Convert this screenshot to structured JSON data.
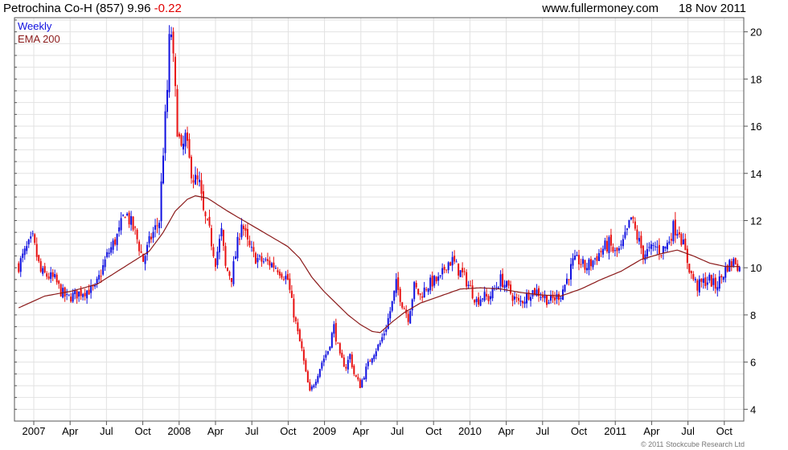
{
  "header": {
    "security": "Petrochina Co-H (857)",
    "price": "9.96",
    "change": "-0.22",
    "site": "www.fullermoney.com",
    "date": "18 Nov 2011"
  },
  "copyright": "© 2011 Stockcube Research Ltd",
  "colors": {
    "up": "#1010e0",
    "down": "#e81010",
    "ema": "#8b1a1a",
    "grid": "#e2e2e2",
    "frame": "#555555"
  },
  "chart_data": {
    "type": "candlestick",
    "legend": [
      "Weekly",
      "EMA 200"
    ],
    "legend_position": "top-left",
    "x_ticks": [
      "2007",
      "Apr",
      "Jul",
      "Oct",
      "2008",
      "Apr",
      "Jul",
      "Oct",
      "2009",
      "Apr",
      "Jul",
      "Oct",
      "2010",
      "Apr",
      "Jul",
      "Oct",
      "2011",
      "Apr",
      "Jul",
      "Oct"
    ],
    "y_ticks": [
      4,
      6,
      8,
      10,
      12,
      14,
      16,
      18,
      20
    ],
    "ylim": [
      3.5,
      20.6
    ],
    "grid": true,
    "price_path": [
      [
        0,
        10.1
      ],
      [
        4,
        10.8
      ],
      [
        7,
        11.2
      ],
      [
        11,
        9.8
      ],
      [
        18,
        9.5
      ],
      [
        21,
        9.0
      ],
      [
        24,
        8.7
      ],
      [
        32,
        9.0
      ],
      [
        38,
        9.1
      ],
      [
        44,
        10.5
      ],
      [
        50,
        11.5
      ],
      [
        53,
        12.4
      ],
      [
        58,
        11.5
      ],
      [
        62,
        10.3
      ],
      [
        66,
        11.3
      ],
      [
        70,
        12.0
      ],
      [
        72,
        15.0
      ],
      [
        74,
        17.5
      ],
      [
        75,
        19.5
      ],
      [
        76,
        20.0
      ],
      [
        79,
        16.0
      ],
      [
        81,
        14.8
      ],
      [
        83,
        15.5
      ],
      [
        85,
        14.5
      ],
      [
        87,
        13.8
      ],
      [
        90,
        13.5
      ],
      [
        92,
        12.3
      ],
      [
        95,
        11.5
      ],
      [
        98,
        10.3
      ],
      [
        101,
        11.5
      ],
      [
        103,
        10.0
      ],
      [
        106,
        9.6
      ],
      [
        109,
        11.0
      ],
      [
        111,
        12.0
      ],
      [
        114,
        11.0
      ],
      [
        117,
        10.5
      ],
      [
        120,
        10.3
      ],
      [
        125,
        10.2
      ],
      [
        129,
        10.0
      ],
      [
        134,
        9.5
      ],
      [
        136,
        8.5
      ],
      [
        139,
        7.2
      ],
      [
        141,
        6.5
      ],
      [
        143,
        5.5
      ],
      [
        145,
        4.7
      ],
      [
        148,
        5.3
      ],
      [
        151,
        6.0
      ],
      [
        154,
        6.5
      ],
      [
        157,
        7.5
      ],
      [
        160,
        6.2
      ],
      [
        163,
        5.8
      ],
      [
        165,
        6.3
      ],
      [
        167,
        5.5
      ],
      [
        170,
        5.0
      ],
      [
        173,
        5.7
      ],
      [
        176,
        6.3
      ],
      [
        180,
        6.8
      ],
      [
        183,
        7.5
      ],
      [
        186,
        8.5
      ],
      [
        188,
        9.3
      ],
      [
        191,
        8.5
      ],
      [
        194,
        7.9
      ],
      [
        197,
        9.2
      ],
      [
        200,
        8.8
      ],
      [
        203,
        9.2
      ],
      [
        206,
        9.4
      ],
      [
        210,
        9.5
      ],
      [
        213,
        10.2
      ],
      [
        216,
        10.3
      ],
      [
        219,
        9.9
      ],
      [
        222,
        9.6
      ],
      [
        225,
        9.1
      ],
      [
        228,
        8.6
      ],
      [
        231,
        8.8
      ],
      [
        234,
        8.7
      ],
      [
        237,
        9.1
      ],
      [
        240,
        9.5
      ],
      [
        243,
        9.2
      ],
      [
        246,
        8.8
      ],
      [
        249,
        8.5
      ],
      [
        252,
        8.7
      ],
      [
        255,
        9.0
      ],
      [
        258,
        9.0
      ],
      [
        261,
        8.8
      ],
      [
        264,
        8.6
      ],
      [
        267,
        8.7
      ],
      [
        270,
        8.9
      ],
      [
        273,
        9.5
      ],
      [
        276,
        10.2
      ],
      [
        279,
        10.3
      ],
      [
        282,
        10.0
      ],
      [
        285,
        10.2
      ],
      [
        288,
        10.5
      ],
      [
        291,
        10.8
      ],
      [
        294,
        11.0
      ],
      [
        297,
        10.6
      ],
      [
        300,
        10.8
      ],
      [
        303,
        11.5
      ],
      [
        305,
        12.1
      ],
      [
        308,
        11.3
      ],
      [
        311,
        10.6
      ],
      [
        314,
        10.7
      ],
      [
        317,
        10.9
      ],
      [
        320,
        10.7
      ],
      [
        323,
        11.0
      ],
      [
        326,
        11.7
      ],
      [
        329,
        11.6
      ],
      [
        332,
        10.6
      ],
      [
        335,
        9.7
      ],
      [
        338,
        9.2
      ],
      [
        341,
        9.4
      ],
      [
        344,
        9.5
      ],
      [
        347,
        9.2
      ],
      [
        350,
        9.6
      ],
      [
        353,
        10.1
      ],
      [
        357,
        10.3
      ],
      [
        359,
        9.96
      ]
    ],
    "ema_path": [
      [
        0,
        8.3
      ],
      [
        13,
        8.8
      ],
      [
        26,
        9.0
      ],
      [
        39,
        9.3
      ],
      [
        52,
        10.0
      ],
      [
        65,
        10.7
      ],
      [
        72,
        11.5
      ],
      [
        78,
        12.4
      ],
      [
        84,
        12.9
      ],
      [
        88,
        13.05
      ],
      [
        94,
        12.95
      ],
      [
        104,
        12.4
      ],
      [
        114,
        11.9
      ],
      [
        124,
        11.4
      ],
      [
        134,
        10.9
      ],
      [
        140,
        10.4
      ],
      [
        146,
        9.6
      ],
      [
        152,
        9.0
      ],
      [
        158,
        8.5
      ],
      [
        164,
        8.0
      ],
      [
        170,
        7.6
      ],
      [
        176,
        7.3
      ],
      [
        180,
        7.25
      ],
      [
        186,
        7.7
      ],
      [
        192,
        8.1
      ],
      [
        200,
        8.5
      ],
      [
        210,
        8.8
      ],
      [
        220,
        9.1
      ],
      [
        230,
        9.15
      ],
      [
        240,
        9.1
      ],
      [
        250,
        8.95
      ],
      [
        260,
        8.85
      ],
      [
        270,
        8.8
      ],
      [
        280,
        9.1
      ],
      [
        290,
        9.5
      ],
      [
        300,
        9.85
      ],
      [
        310,
        10.35
      ],
      [
        320,
        10.6
      ],
      [
        328,
        10.75
      ],
      [
        336,
        10.5
      ],
      [
        344,
        10.2
      ],
      [
        352,
        10.05
      ],
      [
        359,
        10.05
      ]
    ]
  }
}
